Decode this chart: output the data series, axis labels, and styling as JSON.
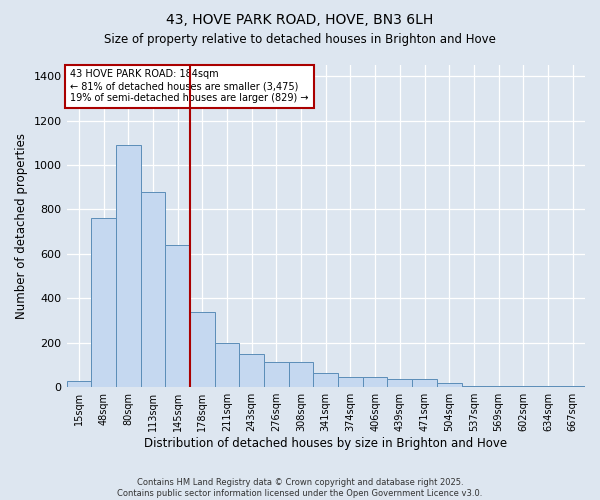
{
  "title": "43, HOVE PARK ROAD, HOVE, BN3 6LH",
  "subtitle": "Size of property relative to detached houses in Brighton and Hove",
  "xlabel": "Distribution of detached houses by size in Brighton and Hove",
  "ylabel": "Number of detached properties",
  "categories": [
    "15sqm",
    "48sqm",
    "80sqm",
    "113sqm",
    "145sqm",
    "178sqm",
    "211sqm",
    "243sqm",
    "276sqm",
    "308sqm",
    "341sqm",
    "374sqm",
    "406sqm",
    "439sqm",
    "471sqm",
    "504sqm",
    "537sqm",
    "569sqm",
    "602sqm",
    "634sqm",
    "667sqm"
  ],
  "values": [
    30,
    760,
    1090,
    880,
    640,
    340,
    200,
    150,
    115,
    115,
    65,
    45,
    45,
    35,
    35,
    20,
    5,
    5,
    5,
    5,
    5
  ],
  "bar_color": "#c5d8f0",
  "bar_edge_color": "#5b8db8",
  "background_color": "#dde6f0",
  "grid_color": "#ffffff",
  "vline_x": 4.5,
  "vline_color": "#aa0000",
  "annotation_text1": "43 HOVE PARK ROAD: 184sqm",
  "annotation_text2": "← 81% of detached houses are smaller (3,475)",
  "annotation_text3": "19% of semi-detached houses are larger (829) →",
  "annotation_box_color": "#aa0000",
  "ylim": [
    0,
    1450
  ],
  "yticks": [
    0,
    200,
    400,
    600,
    800,
    1000,
    1200,
    1400
  ],
  "footer_line1": "Contains HM Land Registry data © Crown copyright and database right 2025.",
  "footer_line2": "Contains public sector information licensed under the Open Government Licence v3.0."
}
